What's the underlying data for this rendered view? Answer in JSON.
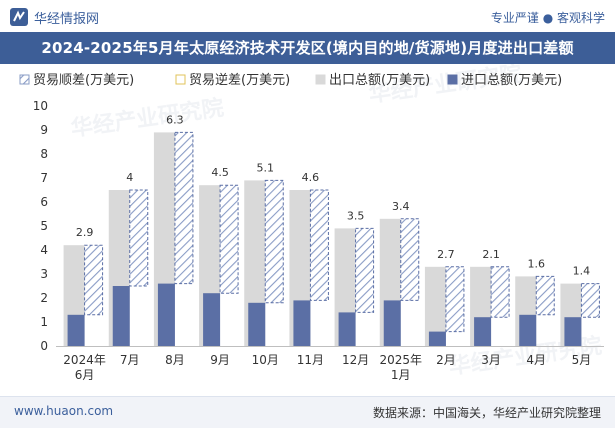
{
  "header": {
    "site_name": "华经情报网",
    "tagline": "专业严谨 ● 客观科学",
    "title": "2024-2025年5月年太原经济技术开发区(境内目的地/货源地)月度进出口差额"
  },
  "watermark": "华经产业研究院",
  "footer": {
    "url": "www.huaon.com",
    "source": "数据来源：中国海关，华经产业研究院整理"
  },
  "colors": {
    "brand": "#3d5e97",
    "export_bar": "#d9d9d9",
    "import_bar": "#5b6fa5",
    "surplus_hatch": "#8a9cc6"
  },
  "chart_data": {
    "type": "bar",
    "categories": [
      "2024年\n6月",
      "7月",
      "8月",
      "9月",
      "10月",
      "11月",
      "12月",
      "2025年\n1月",
      "2月",
      "3月",
      "4月",
      "5月"
    ],
    "series": [
      {
        "name": "贸易顺差(万美元)",
        "values": [
          2.9,
          4,
          6.3,
          4.5,
          5.1,
          4.6,
          3.5,
          3.4,
          2.7,
          2.1,
          1.6,
          1.4
        ]
      },
      {
        "name": "贸易逆差(万美元)",
        "values": [
          0,
          0,
          0,
          0,
          0,
          0,
          0,
          0,
          0,
          0,
          0,
          0
        ]
      },
      {
        "name": "出口总额(万美元)",
        "values": [
          4.2,
          6.5,
          8.9,
          6.7,
          6.9,
          6.5,
          4.9,
          5.3,
          3.3,
          3.3,
          2.9,
          2.6
        ]
      },
      {
        "name": "进口总额(万美元)",
        "values": [
          1.3,
          2.5,
          2.6,
          2.2,
          1.8,
          1.9,
          1.4,
          1.9,
          0.6,
          1.2,
          1.3,
          1.2
        ]
      }
    ],
    "data_labels": [
      "2.9",
      "4",
      "6.3",
      "4.5",
      "5.1",
      "4.6",
      "3.5",
      "3.4",
      "2.7",
      "2.1",
      "1.6",
      "1.4"
    ],
    "ylim": [
      0,
      10
    ],
    "yticks": [
      0,
      1,
      2,
      3,
      4,
      5,
      6,
      7,
      8,
      9,
      10
    ],
    "legend_position": "top-left",
    "grid": false
  }
}
